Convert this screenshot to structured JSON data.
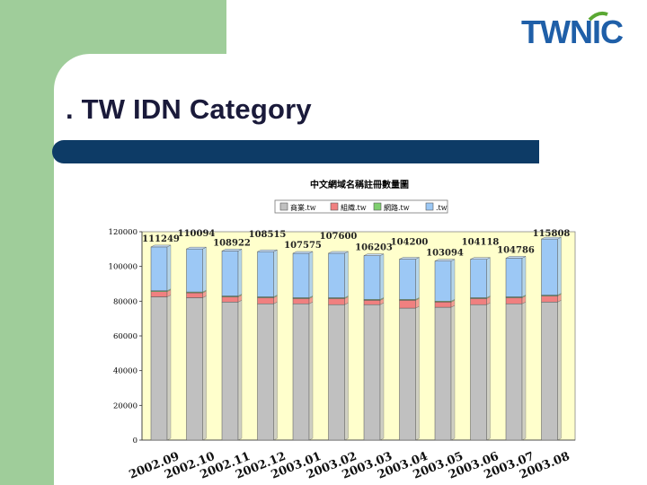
{
  "slide": {
    "title": ". TW IDN Category"
  },
  "logo": {
    "text": "TWNIC",
    "color": "#1f5fa8",
    "accent": "#5aa832"
  },
  "colors": {
    "green_block": "#9fcd9a",
    "title_bar": "#0d3b66",
    "plot_bg": "#ffffcc"
  },
  "chart_data": {
    "type": "bar",
    "stacked": true,
    "title": "中文網域名稱註冊數量圖",
    "categories": [
      "2002.09",
      "2002.10",
      "2002.11",
      "2002.12",
      "2003.01",
      "2003.02",
      "2003.03",
      "2003.04",
      "2003.05",
      "2003.06",
      "2003.07",
      "2003.08"
    ],
    "series": [
      {
        "name": "商業.tw",
        "color": "#c0c0c0",
        "values": [
          82500,
          82000,
          79500,
          78500,
          78500,
          78000,
          78000,
          76000,
          76500,
          78000,
          78500,
          79500
        ]
      },
      {
        "name": "組織.tw",
        "color": "#f08080",
        "values": [
          3000,
          2800,
          3000,
          3500,
          3000,
          3500,
          2500,
          4500,
          3000,
          3500,
          3500,
          3500
        ]
      },
      {
        "name": "網路.tw",
        "color": "#7fcf6f",
        "values": [
          500,
          500,
          500,
          500,
          500,
          500,
          500,
          500,
          500,
          500,
          500,
          500
        ]
      },
      {
        "name": ".tw",
        "color": "#9cc8f5",
        "values": [
          25249,
          24794,
          25922,
          26015,
          25575,
          25600,
          25203,
          23200,
          23094,
          22118,
          22286,
          32308
        ]
      }
    ],
    "totals": [
      111249,
      110094,
      108922,
      108515,
      107575,
      107600,
      106203,
      104200,
      103094,
      104118,
      104786,
      115808
    ],
    "yticks": [
      "120000",
      "100000",
      "80000",
      "60000",
      "40000",
      "20000",
      "0"
    ],
    "ylim": [
      0,
      120000
    ],
    "grid": false,
    "legend_position": "top"
  }
}
